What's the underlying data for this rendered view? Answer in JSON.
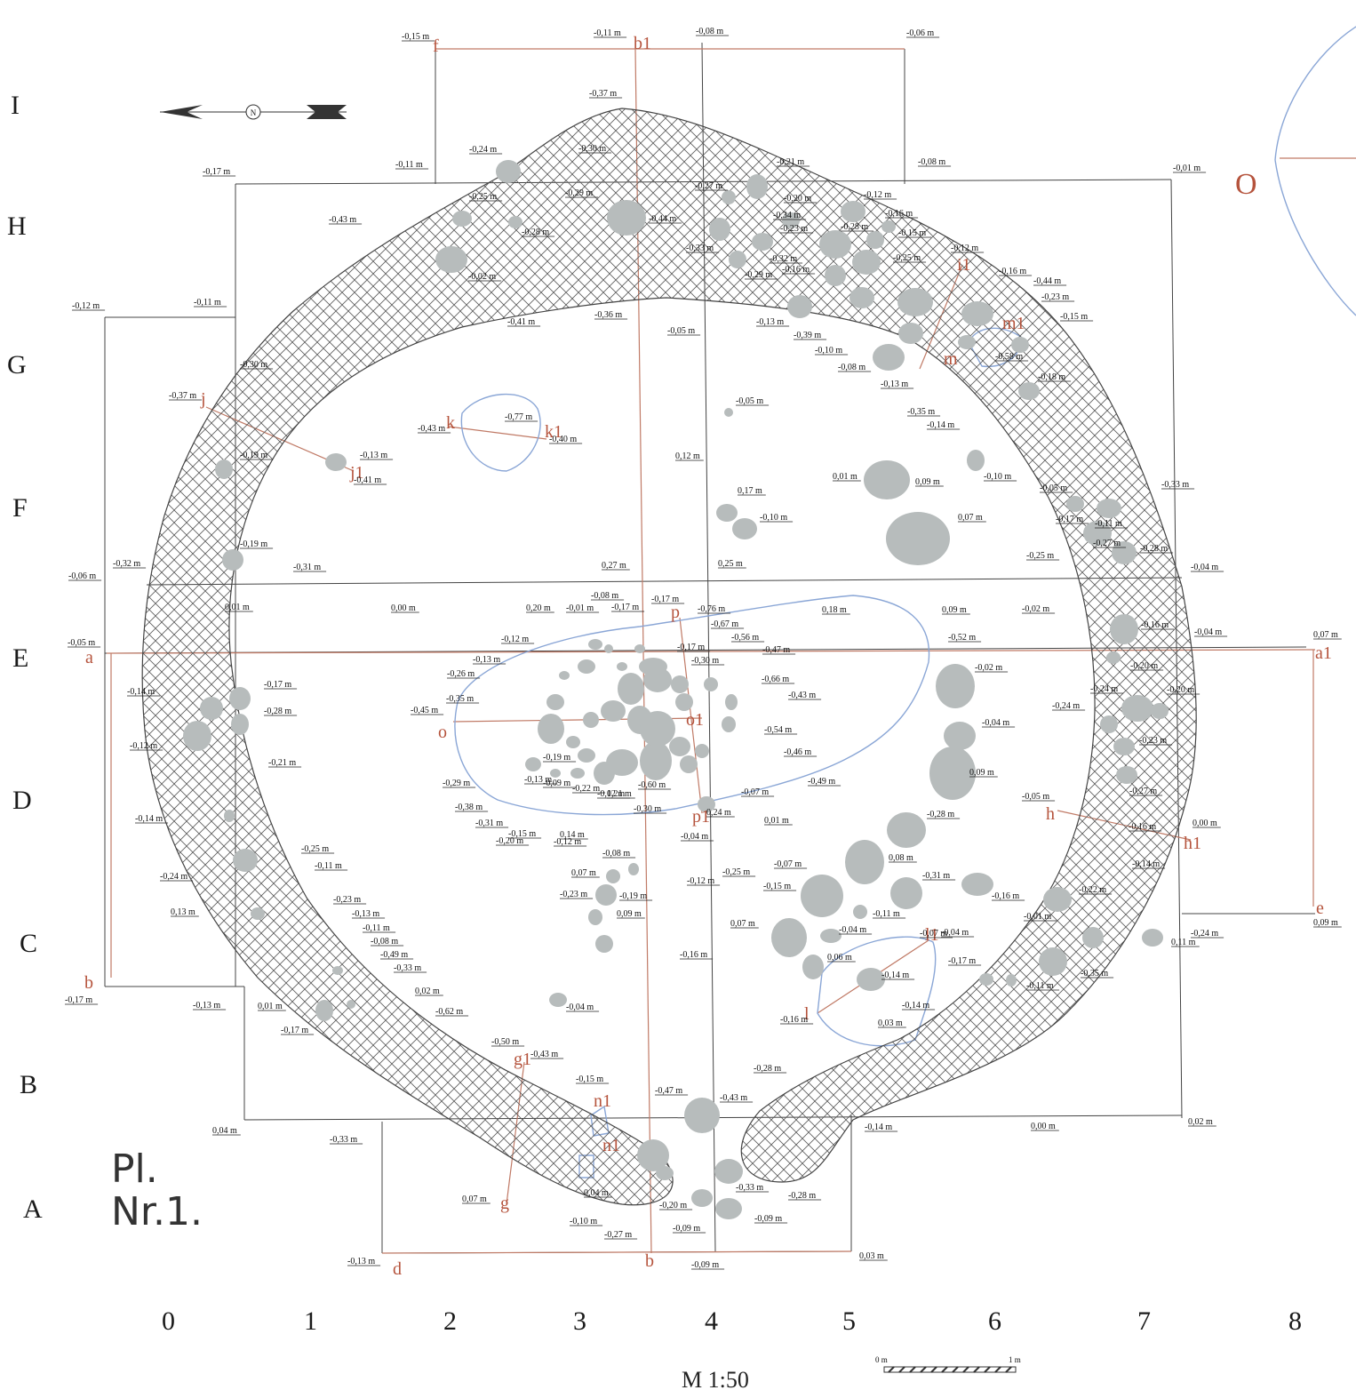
{
  "plate": {
    "line1": "Pl.",
    "line2": "Nr.1."
  },
  "scale": {
    "label": "M 1:50",
    "start": "0 m",
    "end": "1 m"
  },
  "north_symbol": "N",
  "rows": [
    "I",
    "H",
    "G",
    "F",
    "E",
    "D",
    "C",
    "B",
    "A"
  ],
  "cols": [
    "0",
    "1",
    "2",
    "3",
    "4",
    "5",
    "6",
    "7",
    "8"
  ],
  "section_letters": [
    "a",
    "a1",
    "b",
    "b",
    "b1",
    "d",
    "e",
    "f",
    "g",
    "g1",
    "h",
    "h1",
    "i1",
    "j",
    "j1",
    "k",
    "k1",
    "l",
    "l1",
    "m",
    "m1",
    "n1",
    "n1",
    "o",
    "o1",
    "p",
    "p1",
    "O"
  ],
  "levels": [
    "-0,15 m",
    "-0,11 m",
    "-0,08 m",
    "-0,06 m",
    "-0,37 m",
    "-0,24 m",
    "-0,30 m",
    "-0,11 m",
    "-0,21 m",
    "-0,08 m",
    "-0,01 m",
    "-0,17 m",
    "-0,25 m",
    "-0,29 m",
    "-0,27 m",
    "-0,20 m",
    "-0,12 m",
    "-0,43 m",
    "-0,28 m",
    "-0,44 m",
    "-0,34 m",
    "-0,23 m",
    "-0,28 m",
    "-0,16 m",
    "-0,33 m",
    "-0,32 m",
    "-0,15 m",
    "-0,02 m",
    "-0,16 m",
    "-0,25 m",
    "-0,12 m",
    "-0,29 m",
    "-0,16 m",
    "-0,44 m",
    "-0,11 m",
    "-0,12 m",
    "-0,41 m",
    "-0,36 m",
    "-0,05 m",
    "-0,13 m",
    "-0,39 m",
    "-0,23 m",
    "-0,15 m",
    "-0,10 m",
    "-0,58 m",
    "-0,08 m",
    "-0,13 m",
    "-0,18 m",
    "-0,30 m",
    "-0,37 m",
    "-0,77 m",
    "-0,05 m",
    "-0,43 m",
    "-0,40 m",
    "-0,35 m",
    "-0,14 m",
    "-0,19 m",
    "-0,13 m",
    "-0,41 m",
    "0,12 m",
    "0,01 m",
    "0,09 m",
    "-0,10 m",
    "0,17 m",
    "-0,10 m",
    "-0,05 m",
    "-0,17 m",
    "-0,33 m",
    "-0,27 m",
    "-0,11 m",
    "0,07 m",
    "-0,25 m",
    "-0,28 m",
    "-0,19 m",
    "-0,32 m",
    "-0,31 m",
    "0,27 m",
    "0,25 m",
    "-0,06 m",
    "-0,04 m",
    "0,01 m",
    "0,00 m",
    "0,20 m",
    "-0,08 m",
    "-0,01 m",
    "-0,17 m",
    "-0,17 m",
    "-0,76 m",
    "0,18 m",
    "0,09 m",
    "-0,02 m",
    "-0,67 m",
    "-0,52 m",
    "-0,16 m",
    "-0,04 m",
    "0,07 m",
    "-0,05 m",
    "-0,12 m",
    "-0,13 m",
    "-0,17 m",
    "-0,56 m",
    "-0,47 m",
    "-0,20 m",
    "-0,26 m",
    "-0,30 m",
    "-0,02 m",
    "-0,24 m",
    "-0,20 m",
    "-0,35 m",
    "-0,66 m",
    "-0,14 m",
    "-0,17 m",
    "-0,45 m",
    "-0,43 m",
    "-0,28 m",
    "-0,24 m",
    "-0,54 m",
    "-0,04 m",
    "-0,12 m",
    "-0,23 m",
    "-0,21 m",
    "-0,19 m",
    "-0,46 m",
    "-0,49 m",
    "0,09 m",
    "-0,29 m",
    "-0,13 m",
    "-0,09 m",
    "-0,60 m",
    "-0,07 m",
    "-0,27 m",
    "-0,22 m",
    "-0,12 m",
    "0,21 m",
    "-0,05 m",
    "-0,38 m",
    "-0,30 m",
    "0,24 m",
    "0,01 m",
    "-0,28 m",
    "0,00 m",
    "-0,31 m",
    "-0,15 m",
    "0,14 m",
    "-0,04 m",
    "-0,16 m",
    "-0,14 m",
    "-0,20 m",
    "-0,12 m",
    "-0,08 m",
    "-0,25 m",
    "-0,07 m",
    "0,08 m",
    "-0,14 m",
    "-0,24 m",
    "-0,11 m",
    "-0,12 m",
    "-0,25 m",
    "-0,31 m",
    "0,07 m",
    "-0,19 m",
    "-0,22 m",
    "-0,15 m",
    "0,09 m",
    "-0,23 m",
    "0,13 m",
    "-0,23 m",
    "-0,13 m",
    "-0,16 m",
    "-0,01 m",
    "-0,24 m",
    "-0,11 m",
    "-0,07 m",
    "0,09 m",
    "0,11 m",
    "0,07 m",
    "-0,04 m",
    "-0,11 m",
    "-0,08 m",
    "-0,04 m",
    "-0,49 m",
    "-0,16 m",
    "0,06 m",
    "-0,17 m",
    "-0,33 m",
    "-0,14 m",
    "-0,11 m",
    "-0,35 m",
    "-0,17 m",
    "-0,13 m",
    "0,01 m",
    "0,02 m",
    "-0,14 m",
    "-0,17 m",
    "-0,62 m",
    "-0,04 m",
    "-0,16 m",
    "0,03 m",
    "-0,50 m",
    "-0,43 m",
    "-0,15 m",
    "-0,28 m",
    "-0,47 m",
    "-0,43 m",
    "0,04 m",
    "-0,14 m",
    "0,00 m",
    "0,02 m",
    "-0,33 m",
    "0,07 m",
    "0,04 m",
    "-0,33 m",
    "-0,28 m",
    "-0,20 m",
    "-0,10 m",
    "-0,09 m",
    "-0,27 m",
    "-0,09 m",
    "-0,13 m",
    "-0,09 m",
    "0,03 m",
    "0,04 m",
    "0,01 m"
  ],
  "colors": {
    "ink": "#333333",
    "hatch": "#555555",
    "stone": "#b3b8b8",
    "red": "#c07a66",
    "blue": "#8aa6d6"
  }
}
